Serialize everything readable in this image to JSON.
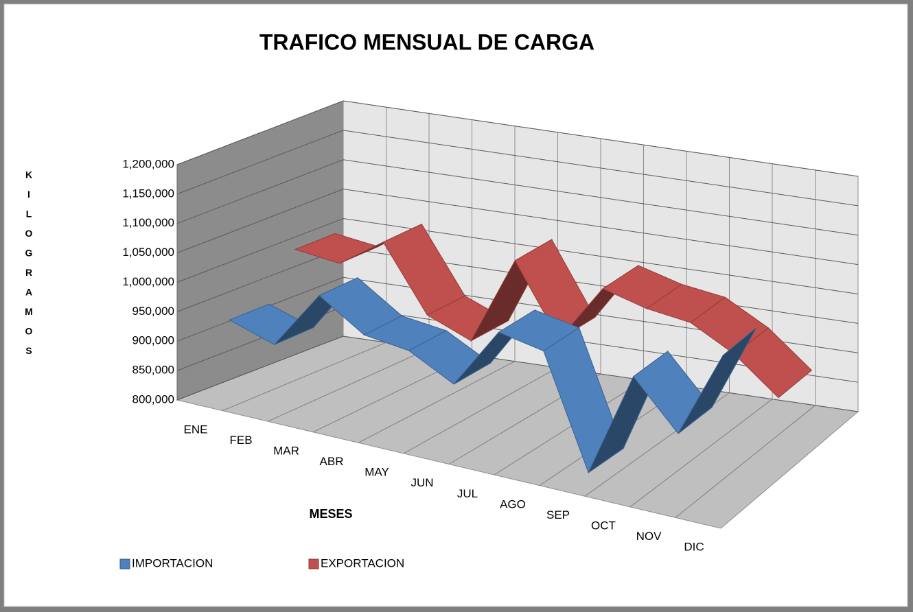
{
  "chart_data": {
    "type": "line3d",
    "title": "TRAFICO MENSUAL DE CARGA",
    "y_axis_label": "KILOGRAMOS",
    "x_axis_label": "MESES",
    "categories": [
      "ENE",
      "FEB",
      "MAR",
      "ABR",
      "MAY",
      "JUN",
      "JUL",
      "AGO",
      "SEP",
      "OCT",
      "NOV",
      "DIC"
    ],
    "series": [
      {
        "name": "IMPORTACION",
        "color": "#4f81bd",
        "values": [
          925000,
          900000,
          1000000,
          950000,
          940000,
          900000,
          1005000,
          990000,
          800000,
          980000,
          900000,
          1050000
        ]
      },
      {
        "name": "EXPORTACION",
        "color": "#c0504d",
        "values": [
          1000000,
          990000,
          1040000,
          930000,
          900000,
          1050000,
          930000,
          1030000,
          1010000,
          1000000,
          960000,
          900000
        ]
      }
    ],
    "ylim": [
      800000,
      1200000
    ],
    "yticks": [
      {
        "value": 800000,
        "label": "800,000"
      },
      {
        "value": 850000,
        "label": "850,000"
      },
      {
        "value": 900000,
        "label": "900,000"
      },
      {
        "value": 950000,
        "label": "950,000"
      },
      {
        "value": 1000000,
        "label": "1,000,000"
      },
      {
        "value": 1050000,
        "label": "1,050,000"
      },
      {
        "value": 1100000,
        "label": "1,100,000"
      },
      {
        "value": 1150000,
        "label": "1,150,000"
      },
      {
        "value": 1200000,
        "label": "1,200,000"
      }
    ],
    "grid": true,
    "legend": "bottom-left"
  }
}
